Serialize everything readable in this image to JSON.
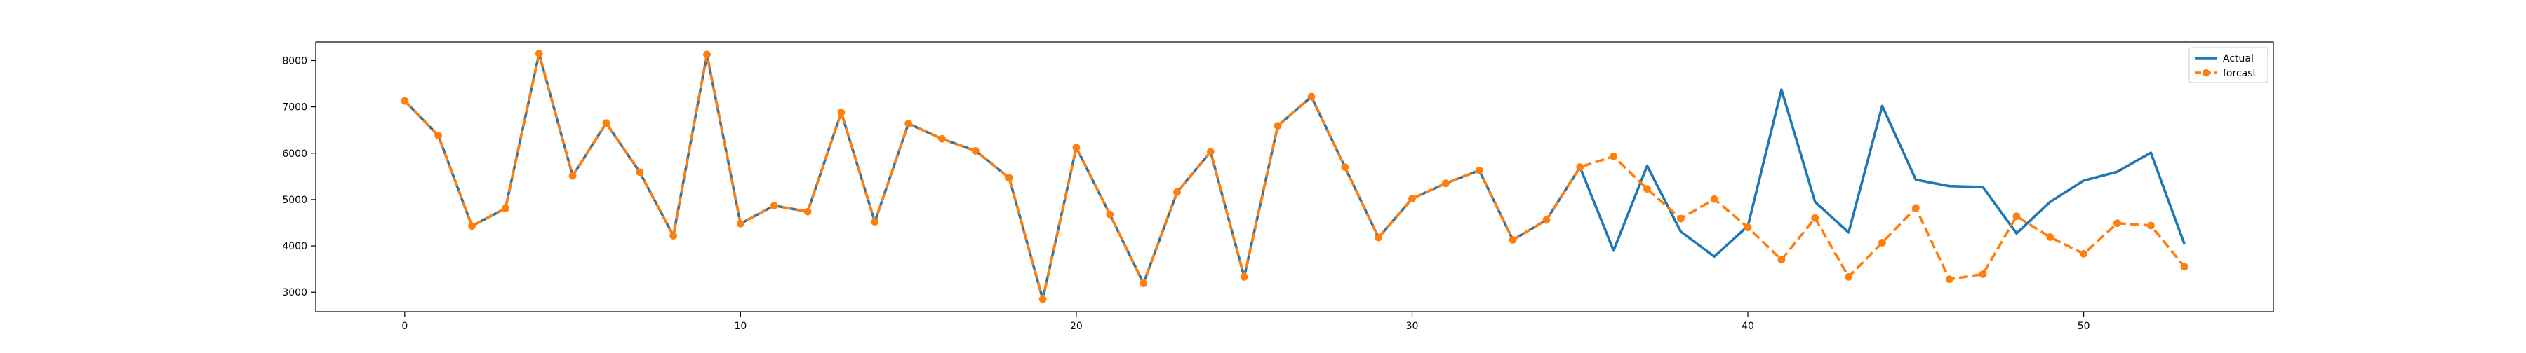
{
  "chart_data": {
    "type": "line",
    "title": "",
    "xlabel": "",
    "ylabel": "",
    "xlim": [
      -2.65,
      55.65
    ],
    "ylim": [
      2580,
      8400
    ],
    "x_ticks": [
      0,
      10,
      20,
      30,
      40,
      50
    ],
    "x_tick_labels": [
      "0",
      "10",
      "20",
      "30",
      "40",
      "50"
    ],
    "y_ticks": [
      3000,
      4000,
      5000,
      6000,
      7000,
      8000
    ],
    "y_tick_labels": [
      "3000",
      "4000",
      "5000",
      "6000",
      "7000",
      "8000"
    ],
    "grid": false,
    "legend_position": "upper right",
    "legend": [
      "Actual",
      "forcast"
    ],
    "series": [
      {
        "name": "Actual",
        "color": "#1f77b4",
        "style": "solid",
        "marker": "none",
        "x": [
          0,
          1,
          2,
          3,
          4,
          5,
          6,
          7,
          8,
          9,
          10,
          11,
          12,
          13,
          14,
          15,
          16,
          17,
          18,
          19,
          20,
          21,
          22,
          23,
          24,
          25,
          26,
          27,
          28,
          29,
          30,
          31,
          32,
          33,
          34,
          35,
          36,
          37,
          38,
          39,
          40,
          41,
          42,
          43,
          44,
          45,
          46,
          47,
          48,
          49,
          50,
          51,
          52,
          53
        ],
        "values": [
          7130,
          6380,
          4430,
          4810,
          8150,
          5510,
          6650,
          5590,
          4220,
          8130,
          4480,
          4870,
          4740,
          6880,
          4520,
          6640,
          6310,
          6050,
          5470,
          2850,
          6120,
          4680,
          3190,
          5160,
          6030,
          3330,
          6590,
          7220,
          5700,
          4180,
          5020,
          5350,
          5630,
          4130,
          4560,
          5700,
          3900,
          5730,
          4310,
          3770,
          4430,
          7370,
          4950,
          4290,
          7020,
          5430,
          5290,
          5270,
          4270,
          4950,
          5410,
          5600,
          6010,
          4040
        ]
      },
      {
        "name": "forcast",
        "color": "#ff7f0e",
        "style": "dashed",
        "marker": "circle",
        "x": [
          0,
          1,
          2,
          3,
          4,
          5,
          6,
          7,
          8,
          9,
          10,
          11,
          12,
          13,
          14,
          15,
          16,
          17,
          18,
          19,
          20,
          21,
          22,
          23,
          24,
          25,
          26,
          27,
          28,
          29,
          30,
          31,
          32,
          33,
          34,
          35,
          36,
          37,
          38,
          39,
          40,
          41,
          42,
          43,
          44,
          45,
          46,
          47,
          48,
          49,
          50,
          51,
          52,
          53
        ],
        "values": [
          7130,
          6380,
          4430,
          4810,
          8150,
          5510,
          6650,
          5590,
          4220,
          8130,
          4480,
          4870,
          4740,
          6880,
          4520,
          6640,
          6310,
          6050,
          5470,
          2850,
          6120,
          4680,
          3190,
          5160,
          6030,
          3330,
          6590,
          7220,
          5700,
          4180,
          5020,
          5350,
          5630,
          4130,
          4560,
          5700,
          5930,
          5230,
          4590,
          5010,
          4400,
          3700,
          4600,
          3330,
          4070,
          4820,
          3280,
          3390,
          4640,
          4190,
          3830,
          4490,
          4440,
          3550
        ]
      }
    ]
  }
}
